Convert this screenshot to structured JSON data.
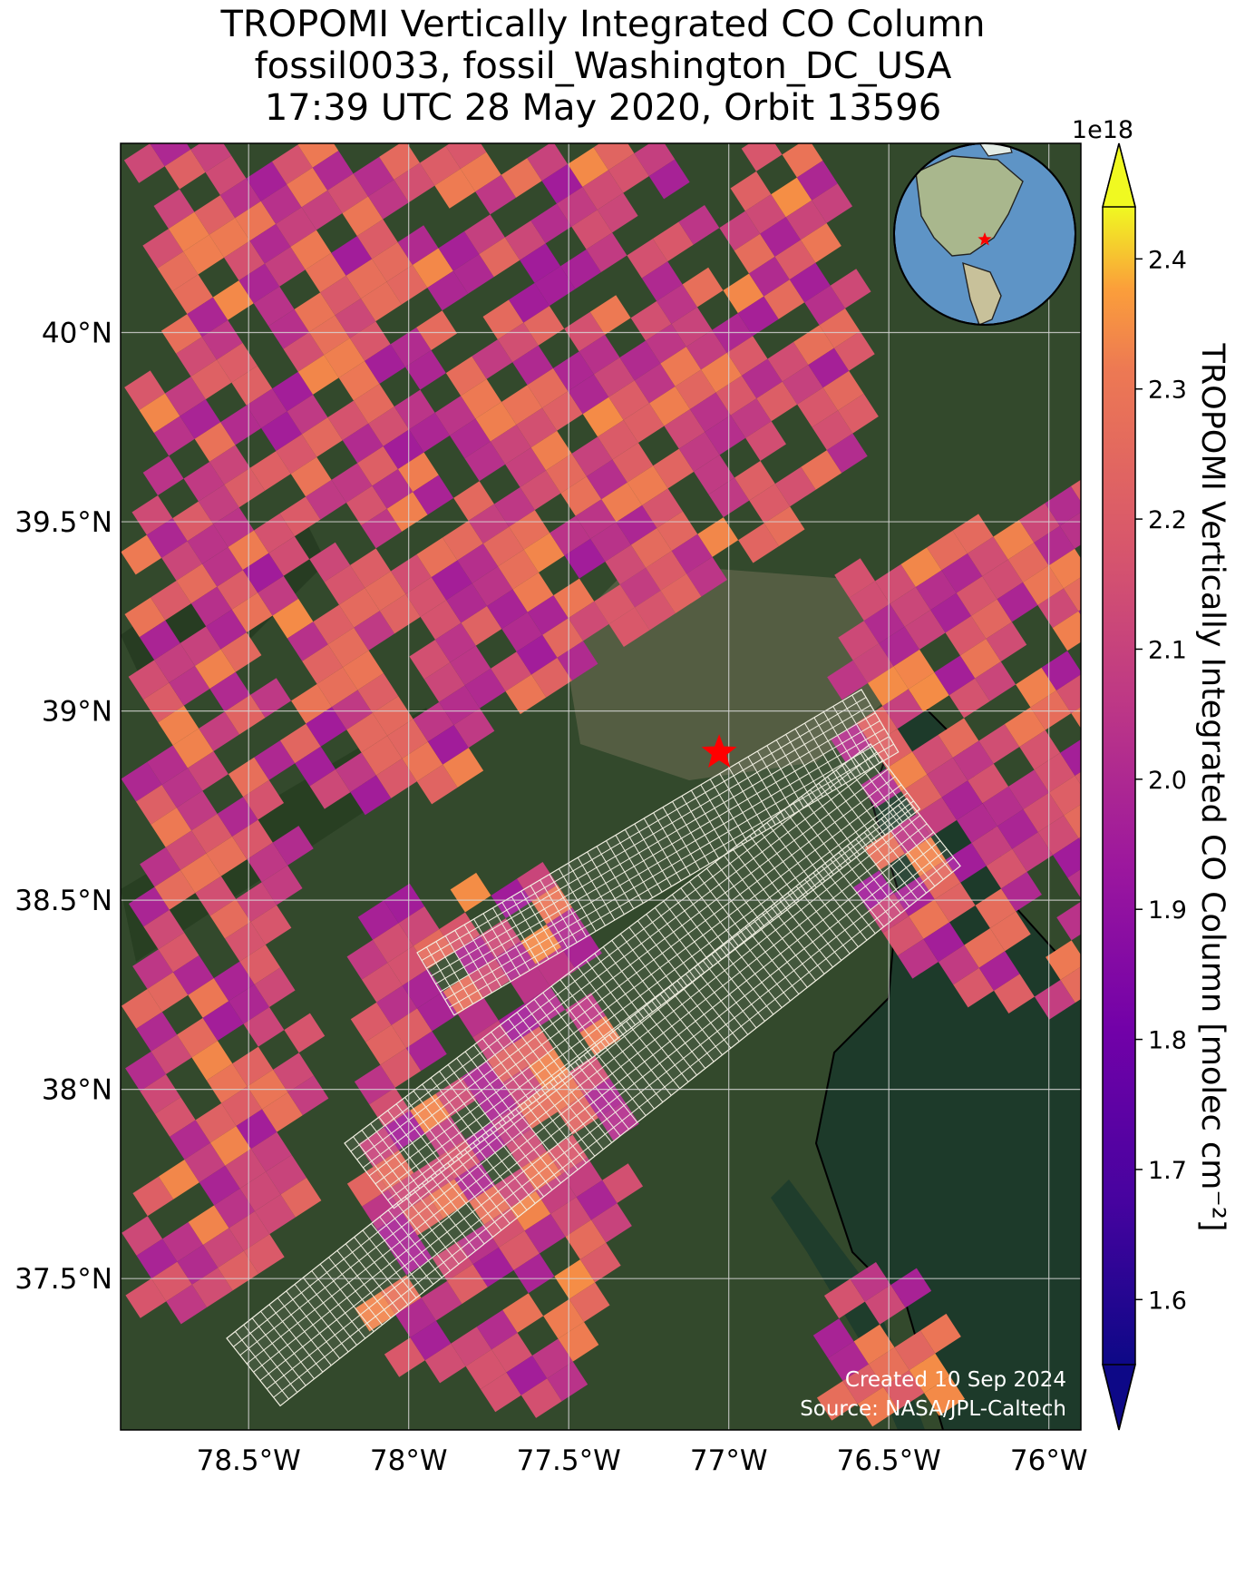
{
  "title": {
    "line1": "TROPOMI Vertically Integrated CO Column",
    "line2": "fossil0033, fossil_Washington_DC_USA",
    "line3": "17:39 UTC 28 May 2020, Orbit 13596"
  },
  "map": {
    "lon_range": [
      -78.9,
      -75.9
    ],
    "lat_range": [
      37.1,
      40.5
    ],
    "lat_ticks": [
      {
        "value": 40.0,
        "label": "40°N"
      },
      {
        "value": 39.5,
        "label": "39.5°N"
      },
      {
        "value": 39.0,
        "label": "39°N"
      },
      {
        "value": 38.5,
        "label": "38.5°N"
      },
      {
        "value": 38.0,
        "label": "38°N"
      },
      {
        "value": 37.5,
        "label": "37.5°N"
      }
    ],
    "lon_ticks": [
      {
        "value": -78.5,
        "label": "78.5°W"
      },
      {
        "value": -78.0,
        "label": "78°W"
      },
      {
        "value": -77.5,
        "label": "77.5°W"
      },
      {
        "value": -77.0,
        "label": "77°W"
      },
      {
        "value": -76.5,
        "label": "76.5°W"
      },
      {
        "value": -76.0,
        "label": "76°W"
      }
    ],
    "target": {
      "name": "fossil_Washington_DC_USA",
      "lon": -77.03,
      "lat": 38.89,
      "marker": "star",
      "color": "#ff0000"
    },
    "inset_globe": {
      "marker_color": "#ff0000"
    },
    "credit": {
      "created": "Created 10 Sep 2024",
      "source": "Source: NASA/JPL-Caltech"
    },
    "colors": {
      "land": "#33492c",
      "water": "#1d3a2a",
      "grid": "#d8d8d8",
      "mesh": "#f2f0e2"
    }
  },
  "colorbar": {
    "label": "TROPOMI Vertically Integrated CO Column [molec cm⁻²]",
    "exponent": "1e18",
    "range": [
      1.55,
      2.44
    ],
    "ticks": [
      "1.6",
      "1.7",
      "1.8",
      "1.9",
      "2.0",
      "2.1",
      "2.2",
      "2.3",
      "2.4"
    ],
    "extend": "both",
    "colormap": "plasma"
  }
}
